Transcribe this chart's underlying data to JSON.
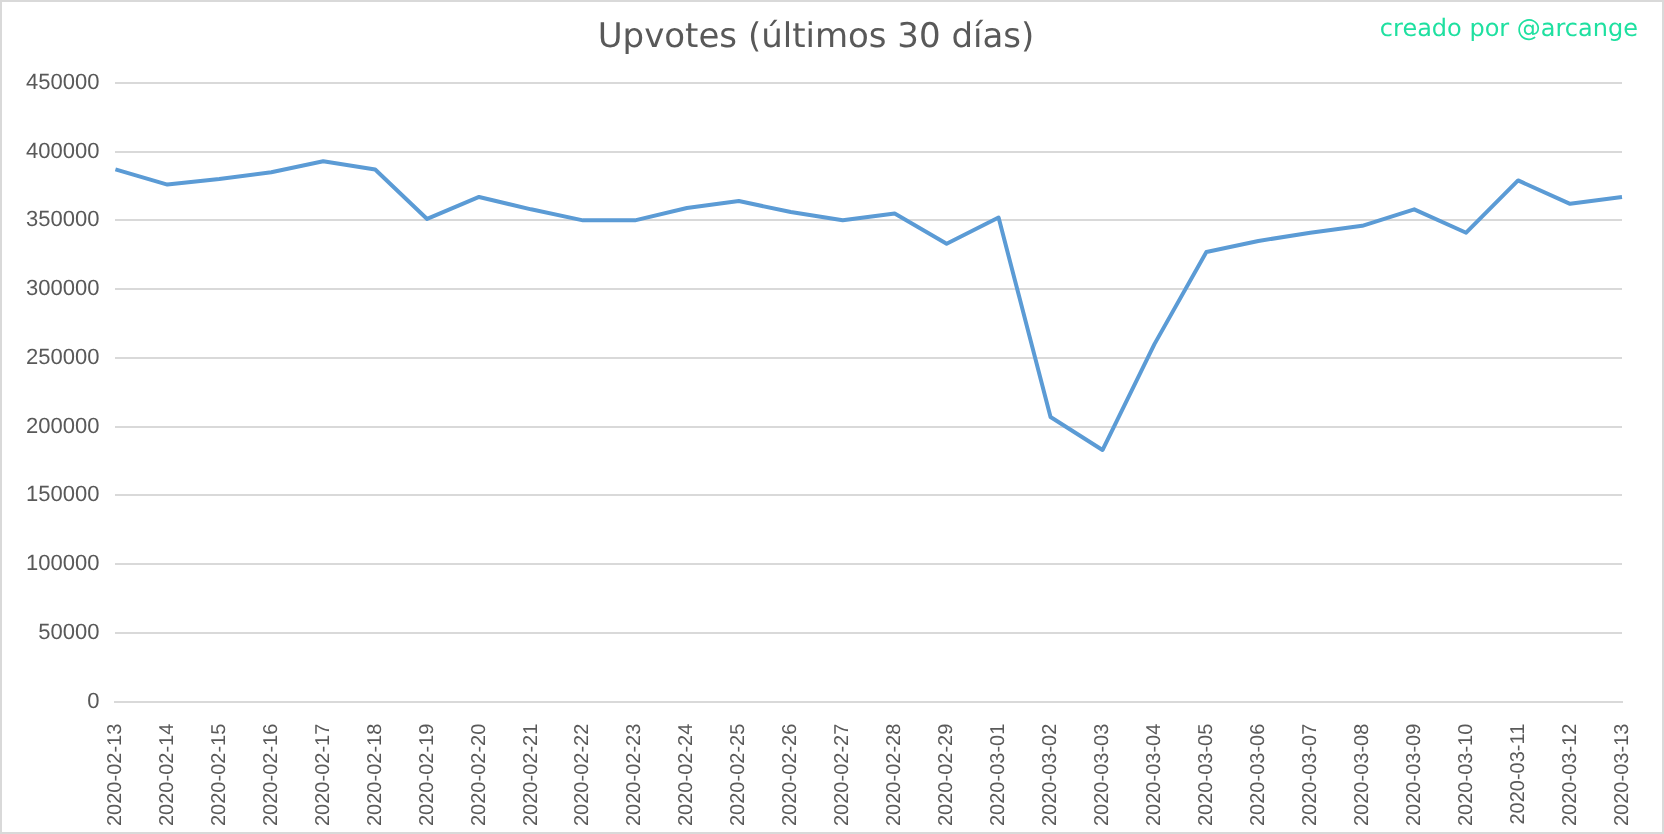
{
  "chart_data": {
    "type": "line",
    "title": "Upvotes (últimos 30 días)",
    "annotations": [
      "creado por @arcange"
    ],
    "categories": [
      "2020-02-13",
      "2020-02-14",
      "2020-02-15",
      "2020-02-16",
      "2020-02-17",
      "2020-02-18",
      "2020-02-19",
      "2020-02-20",
      "2020-02-21",
      "2020-02-22",
      "2020-02-23",
      "2020-02-24",
      "2020-02-25",
      "2020-02-26",
      "2020-02-27",
      "2020-02-28",
      "2020-02-29",
      "2020-03-01",
      "2020-03-02",
      "2020-03-03",
      "2020-03-04",
      "2020-03-05",
      "2020-03-06",
      "2020-03-07",
      "2020-03-08",
      "2020-03-09",
      "2020-03-10",
      "2020-03-11",
      "2020-03-12",
      "2020-03-13"
    ],
    "series": [
      {
        "color": "#5b9bd5",
        "values": [
          387000,
          376000,
          380000,
          385000,
          393000,
          387000,
          351000,
          367000,
          358000,
          350000,
          350000,
          359000,
          364000,
          356000,
          350000,
          355000,
          333000,
          352000,
          207000,
          183000,
          260000,
          327000,
          335000,
          341000,
          346000,
          358000,
          341000,
          379000,
          362000,
          367000
        ]
      }
    ],
    "ylim": [
      0,
      450000
    ],
    "yticks": [
      0,
      50000,
      100000,
      150000,
      200000,
      250000,
      300000,
      350000,
      400000,
      450000
    ],
    "grid": "y",
    "legend": false,
    "marker": "none",
    "line_style": "solid"
  }
}
